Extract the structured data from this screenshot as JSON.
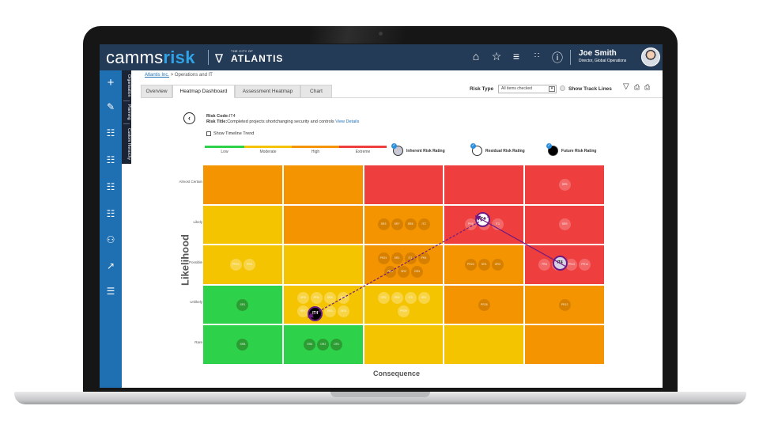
{
  "app": {
    "logo_main": "camms",
    "logo_accent": "risk",
    "client_small": "THE CITY OF",
    "client_name": "ATLANTIS",
    "user_name": "Joe Smith",
    "user_role": "Director, Global Operations",
    "top_icons": [
      "home-icon",
      "star-icon",
      "menu-icon",
      "apps-icon",
      "help-icon"
    ]
  },
  "sidebar": {
    "icons": [
      "plus-icon",
      "edit-icon",
      "report-icon",
      "report-icon",
      "report-icon",
      "report-icon",
      "people-icon",
      "trend-icon",
      "document-icon"
    ],
    "vertical_tabs": [
      "Organisation",
      "Planning",
      "Custom Hierarchy"
    ]
  },
  "breadcrumb": {
    "link": "Atlantis Inc.",
    "separator": ">",
    "current": "Operations and IT"
  },
  "tabs": [
    "Overview",
    "Heatmap Dashboard",
    "Assessment Heatmap",
    "Chart"
  ],
  "filters": {
    "risk_type_label": "Risk Type",
    "risk_type_value": "All items checked",
    "track_lines_label": "Show Track Lines"
  },
  "risk": {
    "code_label": "Risk Code:",
    "code": "IT4",
    "title_label": "Risk Title:",
    "title": "Completed projects shortchanging security and controls",
    "view_details": "View Details",
    "timeline_label": "Show Timeline Trend"
  },
  "legend": {
    "levels": [
      {
        "label": "Low",
        "color": "#2ed24a"
      },
      {
        "label": "Moderate",
        "color": "#f5c400"
      },
      {
        "label": "High",
        "color": "#f39400"
      },
      {
        "label": "Extreme",
        "color": "#ef3e3e"
      }
    ],
    "ratings": [
      {
        "label": "Inherent Risk Rating",
        "fill": "#c9c9d6"
      },
      {
        "label": "Residual Risk Rating",
        "fill": "#ffffff"
      },
      {
        "label": "Future Risk Rating",
        "fill": "#000000"
      }
    ]
  },
  "heatmap": {
    "y_axis_label": "Likelihood",
    "x_axis_label": "Consequence",
    "rows": [
      "Almost Certain",
      "Likely",
      "Possible",
      "Unlikely",
      "Rare"
    ],
    "colors": [
      [
        "#f39400",
        "#f39400",
        "#ef3e3e",
        "#ef3e3e",
        "#ef3e3e"
      ],
      [
        "#f5c400",
        "#f39400",
        "#f39400",
        "#ef3e3e",
        "#ef3e3e"
      ],
      [
        "#f5c400",
        "#f5c400",
        "#f39400",
        "#f39400",
        "#ef3e3e"
      ],
      [
        "#2ed24a",
        "#f5c400",
        "#f5c400",
        "#f39400",
        "#f39400"
      ],
      [
        "#2ed24a",
        "#2ed24a",
        "#f5c400",
        "#f5c400",
        "#f39400"
      ]
    ],
    "cells": [
      {
        "row": 0,
        "col": 4,
        "labels": [
          "SR5"
        ]
      },
      {
        "row": 1,
        "col": 2,
        "labels": [
          "SR3",
          "SR7",
          "SR8",
          "IT2"
        ]
      },
      {
        "row": 1,
        "col": 3,
        "labels": [
          "PR6",
          "SR4",
          "IT3"
        ]
      },
      {
        "row": 1,
        "col": 4,
        "labels": [
          "SR9"
        ]
      },
      {
        "row": 2,
        "col": 0,
        "labels": [
          "PR10",
          "PR4"
        ]
      },
      {
        "row": 2,
        "col": 2,
        "labels": [
          "PR21",
          "SR1",
          "IT1",
          "PR4",
          "SR6",
          "SR2",
          "OR3"
        ]
      },
      {
        "row": 2,
        "col": 3,
        "labels": [
          "PR24",
          "SR1",
          "OR3"
        ]
      },
      {
        "row": 2,
        "col": 4,
        "labels": [
          "PR4",
          "SR2",
          "PR13",
          "PR14"
        ]
      },
      {
        "row": 3,
        "col": 0,
        "labels": [
          "SR1"
        ]
      },
      {
        "row": 3,
        "col": 1,
        "labels": [
          "OR5",
          "PR4",
          "SR9",
          "PR6",
          "SR7",
          "IT3",
          "SR2",
          "OR3"
        ]
      },
      {
        "row": 3,
        "col": 2,
        "labels": [
          "OR2",
          "PR4",
          "IT3",
          "SR1",
          "PR25"
        ]
      },
      {
        "row": 3,
        "col": 3,
        "labels": [
          "PR26"
        ]
      },
      {
        "row": 3,
        "col": 4,
        "labels": [
          "PR12"
        ]
      },
      {
        "row": 4,
        "col": 0,
        "labels": [
          "SR8"
        ]
      },
      {
        "row": 4,
        "col": 1,
        "labels": [
          "SR6",
          "OR2",
          "OR1"
        ]
      }
    ],
    "markers": [
      {
        "type": "inherent",
        "label": "IT4",
        "row": 2,
        "col": 4,
        "fill": "#d8d2e6",
        "text": "#222222"
      },
      {
        "type": "residual",
        "label": "IT4",
        "row": 1,
        "col": 3,
        "fill": "#ffffff",
        "text": "#222222"
      },
      {
        "type": "future",
        "label": "IT4",
        "row": 3,
        "col": 1,
        "fill": "#000000",
        "text": "#ffffff"
      }
    ]
  }
}
